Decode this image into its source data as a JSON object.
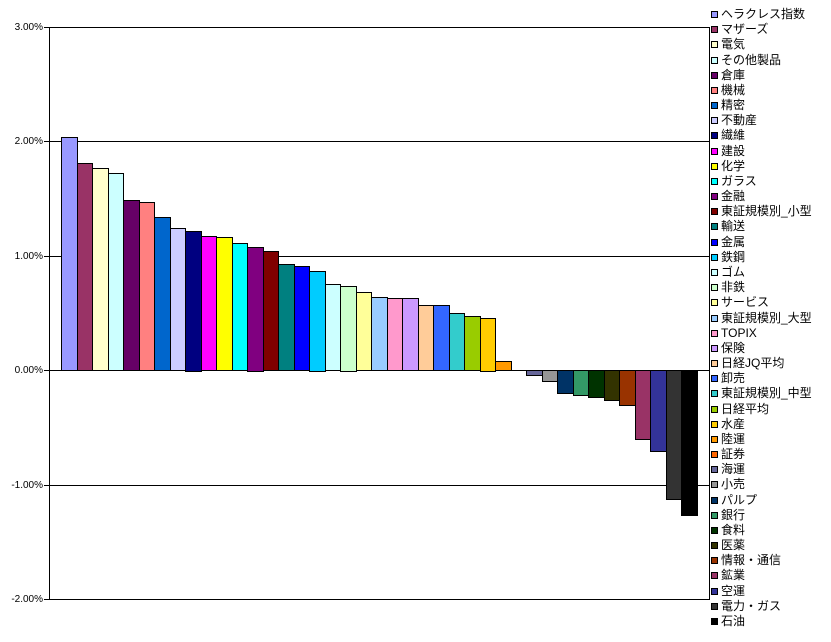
{
  "chart_data": {
    "type": "bar",
    "title": "",
    "xlabel": "",
    "ylabel": "",
    "ylim": [
      -2.0,
      3.0
    ],
    "ytick_interval": 1.0,
    "ytick_labels": [
      "3.00%",
      "2.00%",
      "1.00%",
      "0.00%",
      "-1.00%",
      "-2.00%"
    ],
    "grid": true,
    "legend_position": "right",
    "background_color": "#FFFFFF",
    "axis_color": "#000000",
    "bar_outline_color": "#000000",
    "categories": [
      "ヘラクレス指数",
      "マザーズ",
      "電気",
      "その他製品",
      "倉庫",
      "機械",
      "精密",
      "不動産",
      "繊維",
      "建設",
      "化学",
      "ガラス",
      "金融",
      "東証規模別_小型",
      "輸送",
      "金属",
      "鉄鋼",
      "ゴム",
      "非鉄",
      "サービス",
      "東証規模別_大型",
      "TOPIX",
      "保険",
      "日経JQ平均",
      "卸売",
      "東証規模別_中型",
      "日経平均",
      "水産",
      "陸運",
      "証券",
      "海運",
      "小売",
      "パルプ",
      "銀行",
      "食料",
      "医薬",
      "情報・通信",
      "鉱業",
      "空運",
      "電力・ガス",
      "石油"
    ],
    "values": [
      2.04,
      1.81,
      1.77,
      1.72,
      1.49,
      1.47,
      1.34,
      1.24,
      1.22,
      1.17,
      1.16,
      1.11,
      1.08,
      1.04,
      0.93,
      0.91,
      0.87,
      0.75,
      0.74,
      0.68,
      0.64,
      0.63,
      0.63,
      0.57,
      0.57,
      0.5,
      0.47,
      0.46,
      0.08,
      0.0,
      -0.04,
      -0.1,
      -0.2,
      -0.22,
      -0.24,
      -0.26,
      -0.31,
      -0.6,
      -0.71,
      -1.13,
      -1.27
    ],
    "colors": [
      "#9999FF",
      "#993366",
      "#FFFFCC",
      "#CCFFFF",
      "#660066",
      "#FF8080",
      "#0066CC",
      "#CCCCFF",
      "#000080",
      "#FF00FF",
      "#FFFF00",
      "#00FFFF",
      "#800080",
      "#800000",
      "#008080",
      "#0000FF",
      "#00CCFF",
      "#CCFFFF",
      "#CCFFCC",
      "#FFFF99",
      "#99CCFF",
      "#FF99CC",
      "#CC99FF",
      "#FFCC99",
      "#3366FF",
      "#33CCCC",
      "#99CC00",
      "#FFCC00",
      "#FF9900",
      "#FF6600",
      "#666699",
      "#969696",
      "#003366",
      "#339966",
      "#003300",
      "#333300",
      "#993300",
      "#993366",
      "#333399",
      "#333333",
      "#000000"
    ]
  }
}
